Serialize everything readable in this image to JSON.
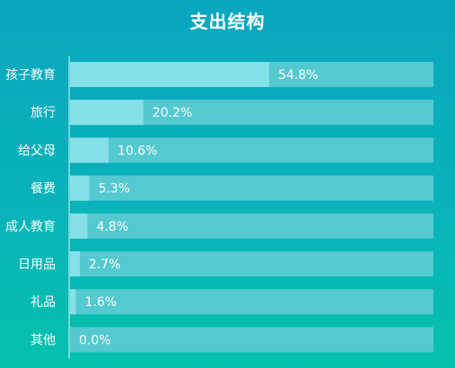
{
  "chart_data": {
    "type": "bar",
    "orientation": "horizontal",
    "title": "支出结构",
    "categories": [
      "孩子教育",
      "旅行",
      "给父母",
      "餐费",
      "成人教育",
      "日用品",
      "礼品",
      "其他"
    ],
    "values": [
      54.8,
      20.2,
      10.6,
      5.3,
      4.8,
      2.7,
      1.6,
      0.0
    ],
    "value_labels": [
      "54.8%",
      "20.2%",
      "10.6%",
      "5.3%",
      "4.8%",
      "2.7%",
      "1.6%",
      "0.0%"
    ],
    "xlim": [
      0,
      100
    ],
    "unit": "%",
    "grid": false,
    "colors": {
      "bar_fill": "#86e0e8",
      "bar_track": "#54c9cf",
      "axis_line": "#d8f4f6"
    }
  }
}
